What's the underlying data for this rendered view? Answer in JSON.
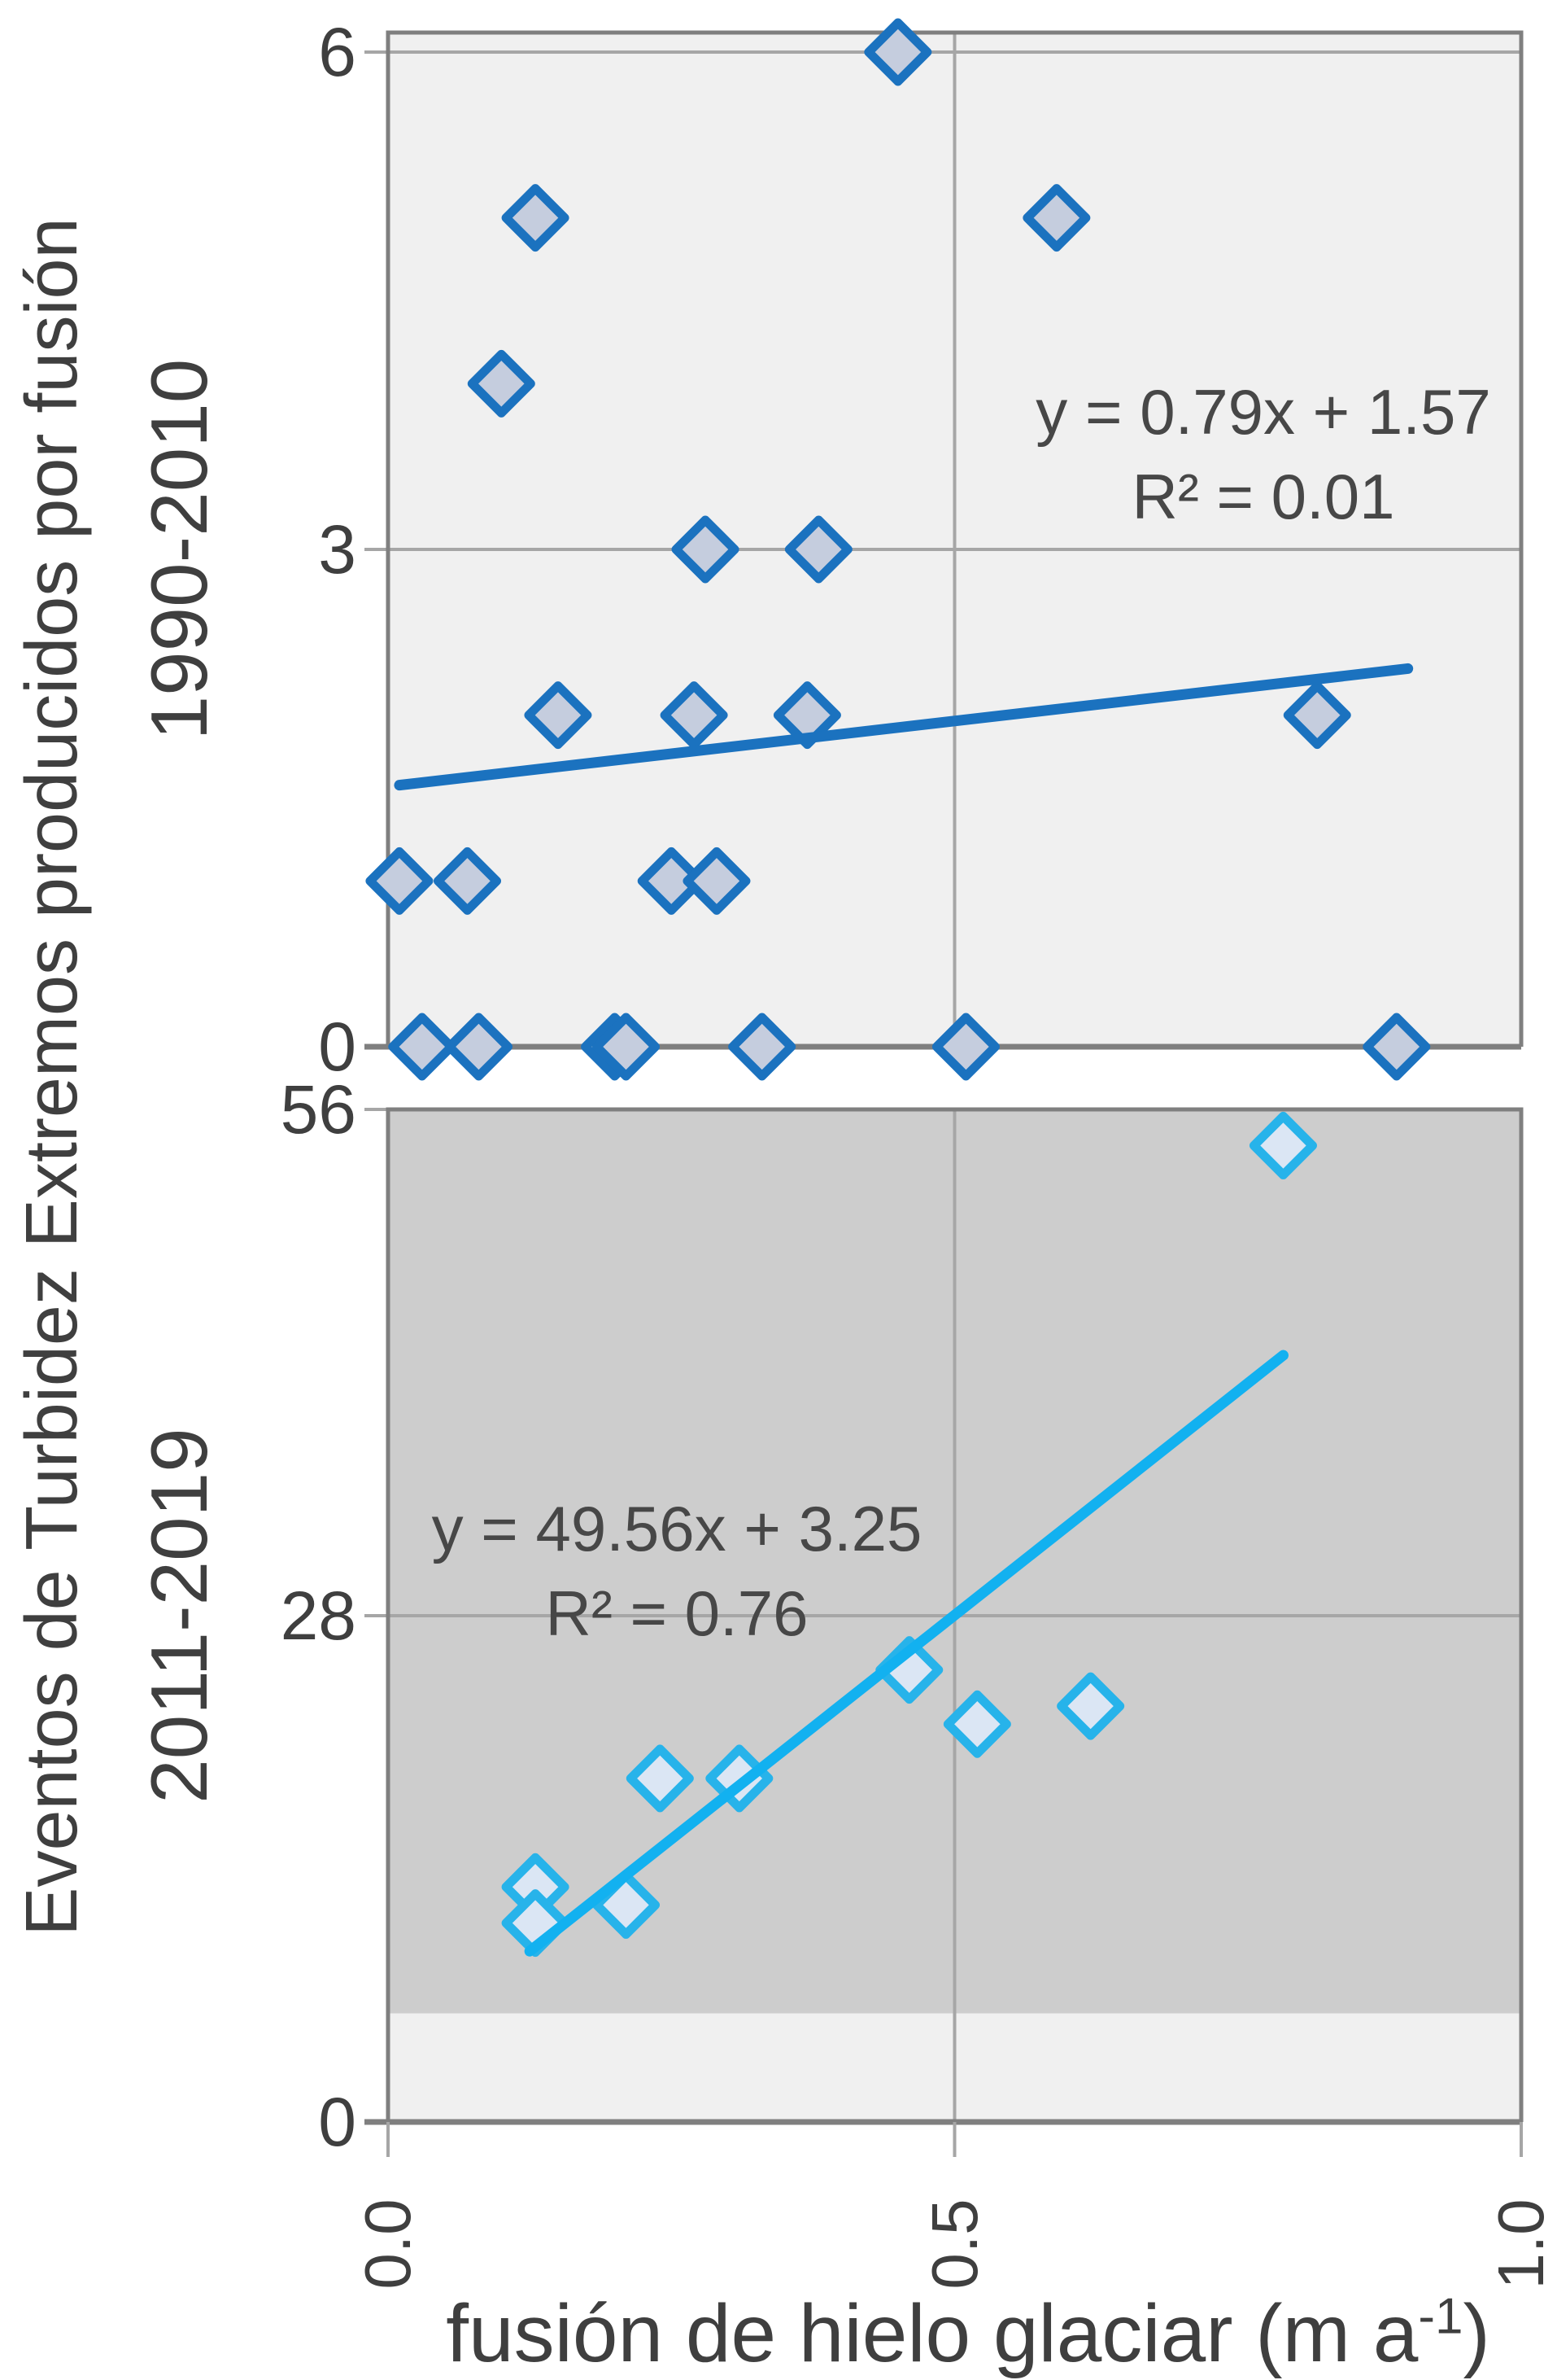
{
  "colors": {
    "background": "#ffffff",
    "text": "#3f3f3f",
    "equation_text": "#474747",
    "frame": "#7f7f7f",
    "gridline": "#a6a6a6",
    "panel_1990_bg": "#f0f0f0",
    "panel_2011_bg_dark": "#cdcdcd",
    "panel_2011_bg_light": "#f0f0f0",
    "series_1990_stroke": "#1b72bf",
    "series_1990_fill": "#c5cdde",
    "series_2011_stroke": "#27b3ea",
    "series_2011_fill": "#dbe6f4",
    "series_2011_line": "#12b1f0"
  },
  "y_axis": {
    "title": "Eventos de Turbidez Extremos producidos por fusión"
  },
  "x_axis": {
    "title_main": "fusión de hielo glaciar (m a",
    "title_sup": "-1",
    "title_end": ")",
    "range": [
      0.0,
      1.0
    ],
    "gridline_x": 0.5,
    "ticks": [
      {
        "value": 0.0,
        "label": "0.0"
      },
      {
        "value": 0.5,
        "label": "0.5"
      },
      {
        "value": 1.0,
        "label": "1.0"
      }
    ]
  },
  "chart_data": [
    {
      "type": "scatter",
      "period": "1990-2010",
      "xlabel": "fusión de hielo glaciar (m a-1)",
      "ylabel": "Eventos de Turbidez Extremos producidos por fusión 1990-2010",
      "xlim": [
        0.0,
        1.0
      ],
      "ylim": [
        0,
        6
      ],
      "grid": true,
      "yticks": [
        {
          "value": 0,
          "label": "0"
        },
        {
          "value": 3,
          "label": "3"
        },
        {
          "value": 6,
          "label": "6"
        }
      ],
      "gridlines_y": [
        3,
        6
      ],
      "points": [
        [
          0.45,
          6
        ],
        [
          0.13,
          5
        ],
        [
          0.59,
          5
        ],
        [
          0.1,
          4
        ],
        [
          0.28,
          3
        ],
        [
          0.38,
          3
        ],
        [
          0.15,
          2
        ],
        [
          0.27,
          2
        ],
        [
          0.37,
          2
        ],
        [
          0.82,
          2
        ],
        [
          0.01,
          1
        ],
        [
          0.07,
          1
        ],
        [
          0.25,
          1
        ],
        [
          0.29,
          1
        ],
        [
          0.03,
          0
        ],
        [
          0.08,
          0
        ],
        [
          0.2,
          0
        ],
        [
          0.21,
          0
        ],
        [
          0.33,
          0
        ],
        [
          0.51,
          0
        ],
        [
          0.89,
          0
        ]
      ],
      "trendline": {
        "slope": 0.79,
        "intercept": 1.57,
        "x_start": 0.01,
        "x_end": 0.9,
        "equation_label": "y = 0.79x + 1.57",
        "r2_label": "R² = 0.01"
      },
      "marker": {
        "shape": "diamond",
        "stroke": "#1b72bf",
        "fill": "#c5cdde"
      },
      "line_color": "#1b72bf",
      "bg_bands": [
        {
          "from": "top",
          "to": 0,
          "color": "#f0f0f0"
        }
      ]
    },
    {
      "type": "scatter",
      "period": "2011-2019",
      "xlabel": "fusión de hielo glaciar (m a-1)",
      "ylabel": "Eventos de Turbidez Extremos producidos por fusión 2011-2019",
      "xlim": [
        0.0,
        1.0
      ],
      "ylim": [
        0,
        56
      ],
      "grid": true,
      "yticks": [
        {
          "value": 0,
          "label": "0"
        },
        {
          "value": 28,
          "label": "28"
        },
        {
          "value": 56,
          "label": "56"
        }
      ],
      "gridlines_y": [
        28
      ],
      "points": [
        [
          0.79,
          54
        ],
        [
          0.46,
          25
        ],
        [
          0.52,
          22
        ],
        [
          0.62,
          23
        ],
        [
          0.24,
          19
        ],
        [
          0.31,
          19
        ],
        [
          0.13,
          13
        ],
        [
          0.13,
          11
        ],
        [
          0.21,
          12
        ]
      ],
      "trendline": {
        "slope": 49.56,
        "intercept": 3.25,
        "x_start": 0.125,
        "x_end": 0.79,
        "equation_label": "y = 49.56x + 3.25",
        "r2_label": "R² = 0.76"
      },
      "marker": {
        "shape": "diamond",
        "stroke": "#27b3ea",
        "fill": "#dbe6f4"
      },
      "line_color": "#12b1f0",
      "bg_bands": [
        {
          "from": "top",
          "to": 6,
          "color": "#cdcdcd"
        },
        {
          "from": 6,
          "to": 0,
          "color": "#f0f0f0"
        }
      ]
    }
  ]
}
